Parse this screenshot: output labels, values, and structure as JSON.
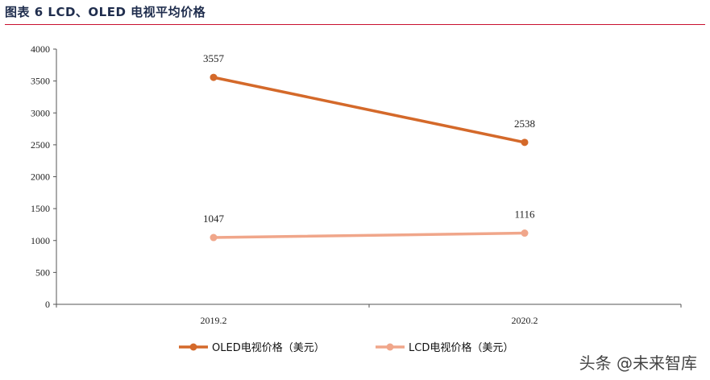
{
  "figure_title": "图表 6 LCD、OLED 电视平均价格",
  "watermark": "头条 @未来智库",
  "chart_data": {
    "type": "line",
    "categories": [
      "2019.2",
      "2020.2"
    ],
    "series": [
      {
        "name": "OLED电视价格（美元）",
        "values": [
          3557,
          2538
        ],
        "color": "#d4692a"
      },
      {
        "name": "LCD电视价格（美元）",
        "values": [
          1047,
          1116
        ],
        "color": "#f0a68a"
      }
    ],
    "ylim": [
      0,
      4000
    ],
    "yticks": [
      0,
      500,
      1000,
      1500,
      2000,
      2500,
      3000,
      3500,
      4000
    ],
    "grid": false,
    "legend": "bottom"
  }
}
